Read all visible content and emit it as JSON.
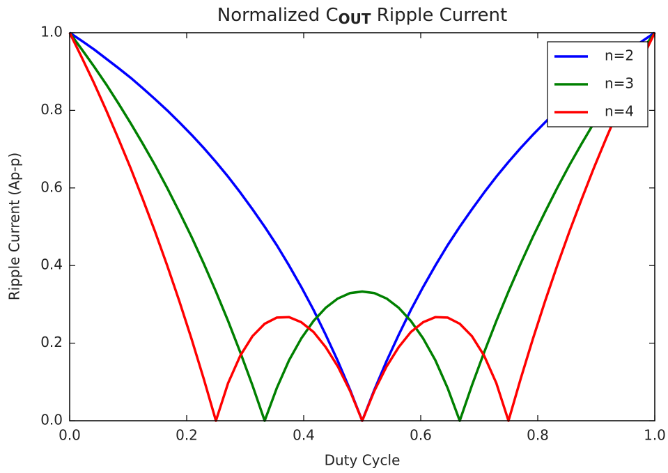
{
  "chart_data": {
    "type": "line",
    "title": [
      "Normalized C",
      "OUT",
      " Ripple Current"
    ],
    "xlabel": "Duty Cycle",
    "ylabel": "Ripple Current (Ap-p)",
    "x": [
      0,
      0.0208,
      0.0417,
      0.0625,
      0.0833,
      0.1042,
      0.125,
      0.1458,
      0.1667,
      0.1875,
      0.2083,
      0.2292,
      0.25,
      0.2708,
      0.2917,
      0.3125,
      0.3333,
      0.3542,
      0.375,
      0.3958,
      0.4167,
      0.4375,
      0.4583,
      0.4792,
      0.5,
      0.5208,
      0.5417,
      0.5625,
      0.5833,
      0.6042,
      0.625,
      0.6458,
      0.6667,
      0.6875,
      0.7083,
      0.7292,
      0.75,
      0.7708,
      0.7917,
      0.8125,
      0.8333,
      0.8542,
      0.875,
      0.8958,
      0.9167,
      0.9375,
      0.9583,
      0.9792,
      1
    ],
    "series": [
      {
        "name": "n=2",
        "color": "#0000ff",
        "values": [
          1,
          0.979,
          0.957,
          0.933,
          0.909,
          0.884,
          0.857,
          0.829,
          0.8,
          0.769,
          0.737,
          0.703,
          0.667,
          0.629,
          0.588,
          0.545,
          0.5,
          0.452,
          0.4,
          0.345,
          0.286,
          0.222,
          0.154,
          0.08,
          0,
          0.08,
          0.154,
          0.222,
          0.286,
          0.345,
          0.4,
          0.452,
          0.5,
          0.545,
          0.588,
          0.629,
          0.667,
          0.703,
          0.737,
          0.769,
          0.8,
          0.829,
          0.857,
          0.884,
          0.909,
          0.933,
          0.957,
          0.979,
          1
        ]
      },
      {
        "name": "n=3",
        "color": "#008000",
        "values": [
          1,
          0.957,
          0.913,
          0.867,
          0.818,
          0.767,
          0.714,
          0.659,
          0.6,
          0.538,
          0.474,
          0.405,
          0.333,
          0.257,
          0.176,
          0.091,
          0,
          0.085,
          0.156,
          0.212,
          0.257,
          0.291,
          0.315,
          0.329,
          0.333,
          0.329,
          0.315,
          0.291,
          0.257,
          0.212,
          0.156,
          0.085,
          0,
          0.091,
          0.176,
          0.257,
          0.333,
          0.405,
          0.474,
          0.538,
          0.6,
          0.659,
          0.714,
          0.767,
          0.818,
          0.867,
          0.913,
          0.957,
          1
        ]
      },
      {
        "name": "n=4",
        "color": "#ff0000",
        "values": [
          1,
          0.936,
          0.87,
          0.8,
          0.727,
          0.651,
          0.571,
          0.488,
          0.4,
          0.308,
          0.211,
          0.108,
          0,
          0.097,
          0.168,
          0.218,
          0.25,
          0.266,
          0.267,
          0.254,
          0.229,
          0.19,
          0.14,
          0.077,
          0,
          0.077,
          0.14,
          0.19,
          0.229,
          0.254,
          0.267,
          0.266,
          0.25,
          0.218,
          0.168,
          0.097,
          0,
          0.108,
          0.211,
          0.308,
          0.4,
          0.488,
          0.571,
          0.651,
          0.727,
          0.8,
          0.87,
          0.936,
          1
        ]
      }
    ],
    "xlim": [
      0,
      1
    ],
    "ylim": [
      0,
      1
    ],
    "xticks": [
      {
        "value": 0,
        "label": "0.0"
      },
      {
        "value": 0.2,
        "label": "0.2"
      },
      {
        "value": 0.4,
        "label": "0.4"
      },
      {
        "value": 0.6,
        "label": "0.6"
      },
      {
        "value": 0.8,
        "label": "0.8"
      },
      {
        "value": 1,
        "label": "1.0"
      }
    ],
    "yticks": [
      {
        "value": 0,
        "label": "0.0"
      },
      {
        "value": 0.2,
        "label": "0.2"
      },
      {
        "value": 0.4,
        "label": "0.4"
      },
      {
        "value": 0.6,
        "label": "0.6"
      },
      {
        "value": 0.8,
        "label": "0.8"
      },
      {
        "value": 1,
        "label": "1.0"
      }
    ],
    "grid": false,
    "legend": "upper right"
  }
}
